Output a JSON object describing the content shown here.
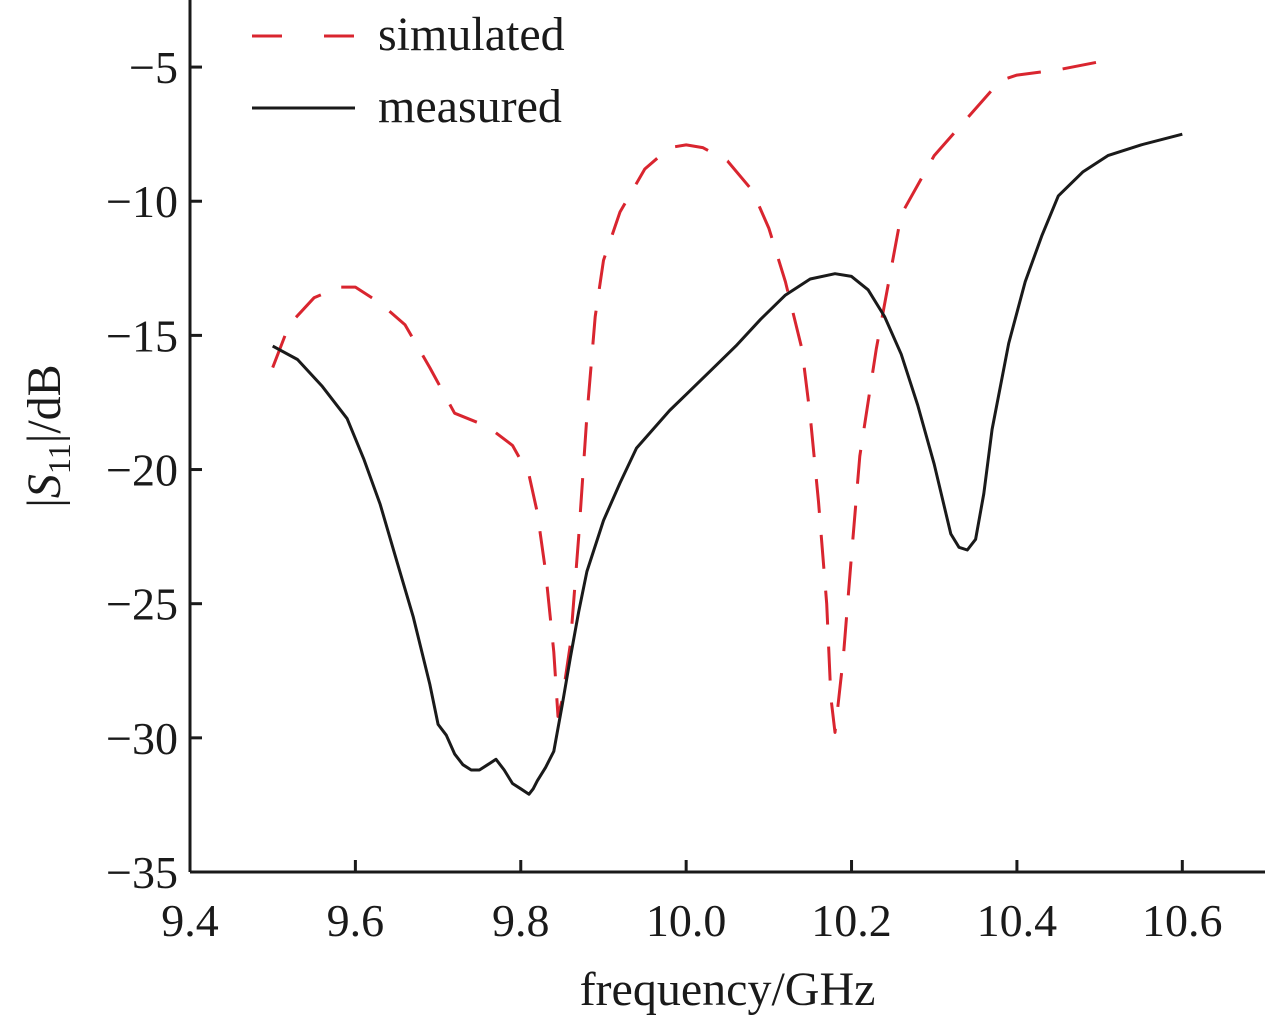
{
  "chart_data": {
    "type": "line",
    "xlabel": "frequency/GHz",
    "ylabel": {
      "prefix": "|",
      "main": "S",
      "sub": "11",
      "suffix": "|/dB"
    },
    "xlim": [
      9.4,
      10.7
    ],
    "ylim": [
      -35,
      -2.5
    ],
    "xticks": [
      9.4,
      9.6,
      9.8,
      10.0,
      10.2,
      10.4,
      10.6
    ],
    "xtick_labels": [
      "9.4",
      "9.6",
      "9.8",
      "10.0",
      "10.2",
      "10.4",
      "10.6"
    ],
    "yticks": [
      -35,
      -30,
      -25,
      -20,
      -15,
      -10,
      -5
    ],
    "ytick_labels": [
      "−35",
      "−30",
      "−25",
      "−20",
      "−15",
      "−10",
      "−5"
    ],
    "grid": false,
    "legend_position": "top-left",
    "series": [
      {
        "name": "simulated",
        "color": "#d9252f",
        "dash": "dashed",
        "x": [
          9.5,
          9.52,
          9.55,
          9.58,
          9.6,
          9.63,
          9.66,
          9.69,
          9.72,
          9.76,
          9.79,
          9.81,
          9.82,
          9.83,
          9.84,
          9.845,
          9.85,
          9.86,
          9.87,
          9.88,
          9.89,
          9.9,
          9.92,
          9.95,
          9.98,
          10.0,
          10.02,
          10.05,
          10.08,
          10.1,
          10.12,
          10.14,
          10.15,
          10.16,
          10.17,
          10.175,
          10.18,
          10.19,
          10.2,
          10.21,
          10.23,
          10.26,
          10.3,
          10.34,
          10.38,
          10.4,
          10.45,
          10.5
        ],
        "y": [
          -16.2,
          -14.6,
          -13.6,
          -13.2,
          -13.2,
          -13.8,
          -14.6,
          -16.2,
          -17.9,
          -18.4,
          -19.1,
          -20.2,
          -21.6,
          -23.8,
          -26.8,
          -29.2,
          -28.6,
          -26.5,
          -22.5,
          -18.0,
          -14.3,
          -12.2,
          -10.4,
          -8.8,
          -8.0,
          -7.9,
          -8.0,
          -8.5,
          -9.6,
          -11.0,
          -13.0,
          -15.5,
          -18.0,
          -21.2,
          -25.0,
          -28.5,
          -29.8,
          -27.0,
          -23.2,
          -19.5,
          -15.5,
          -10.5,
          -8.3,
          -6.9,
          -5.5,
          -5.3,
          -5.1,
          -4.8
        ]
      },
      {
        "name": "measured",
        "color": "#1a1a1a",
        "dash": "solid",
        "x": [
          9.5,
          9.53,
          9.56,
          9.59,
          9.61,
          9.63,
          9.65,
          9.67,
          9.69,
          9.7,
          9.71,
          9.72,
          9.73,
          9.74,
          9.75,
          9.76,
          9.77,
          9.78,
          9.79,
          9.8,
          9.81,
          9.815,
          9.82,
          9.83,
          9.84,
          9.85,
          9.86,
          9.87,
          9.88,
          9.9,
          9.92,
          9.94,
          9.96,
          9.98,
          10.0,
          10.03,
          10.06,
          10.09,
          10.12,
          10.15,
          10.18,
          10.2,
          10.22,
          10.24,
          10.26,
          10.28,
          10.3,
          10.32,
          10.33,
          10.34,
          10.35,
          10.36,
          10.37,
          10.39,
          10.41,
          10.43,
          10.45,
          10.48,
          10.51,
          10.55,
          10.6
        ],
        "y": [
          -15.4,
          -15.9,
          -16.9,
          -18.1,
          -19.6,
          -21.3,
          -23.4,
          -25.5,
          -28.0,
          -29.5,
          -29.9,
          -30.6,
          -31.0,
          -31.2,
          -31.2,
          -31.0,
          -30.8,
          -31.2,
          -31.7,
          -31.9,
          -32.1,
          -31.9,
          -31.6,
          -31.1,
          -30.5,
          -28.8,
          -27.0,
          -25.3,
          -23.8,
          -21.9,
          -20.5,
          -19.2,
          -18.5,
          -17.8,
          -17.2,
          -16.3,
          -15.4,
          -14.4,
          -13.5,
          -12.9,
          -12.7,
          -12.8,
          -13.3,
          -14.3,
          -15.7,
          -17.6,
          -19.8,
          -22.4,
          -22.9,
          -23.0,
          -22.6,
          -20.9,
          -18.5,
          -15.3,
          -13.0,
          -11.3,
          -9.8,
          -8.9,
          -8.3,
          -7.9,
          -7.5
        ]
      }
    ]
  }
}
